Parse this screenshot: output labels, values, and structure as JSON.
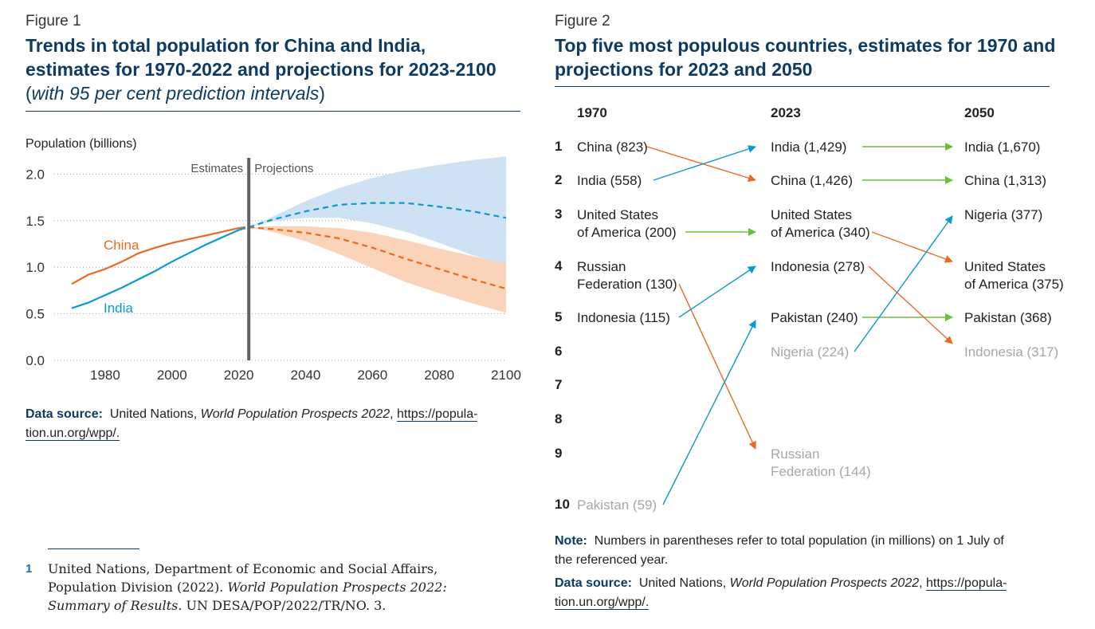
{
  "figure1": {
    "label": "Figure 1",
    "title_line1": "Trends in total population for China and India,",
    "title_line2": "estimates for 1970-2022 and projections for 2023-2100",
    "subtitle_open": "(",
    "subtitle_text": "with 95 per cent prediction intervals",
    "subtitle_close": ")",
    "source_label": "Data source:",
    "source_text": "United Nations,",
    "source_title": "World Population Prospects 2022",
    "source_link_line1": "https://popula-",
    "source_link_line2": "tion.un.org/wpp/."
  },
  "chart_data": {
    "type": "line",
    "title": "Trends in total population for China and India, estimates for 1970-2022 and projections for 2023-2100",
    "ylabel": "Population (billions)",
    "xlabel": "",
    "xlim": [
      1965,
      2100
    ],
    "ylim": [
      0,
      2.2
    ],
    "x_ticks": [
      1980,
      2000,
      2020,
      2040,
      2060,
      2080,
      2100
    ],
    "y_ticks": [
      0.0,
      0.5,
      1.0,
      1.5,
      2.0
    ],
    "y_tick_labels": [
      "0.0",
      "0.5",
      "1.0",
      "1.5",
      "2.0"
    ],
    "grid": "horizontal-dotted",
    "divider_year": 2023,
    "divider_labels": {
      "left": "Estimates",
      "right": "Projections"
    },
    "series": [
      {
        "name": "China",
        "color": "#ea6a22",
        "band_color": "#fad3b8",
        "estimates": {
          "x": [
            1970,
            1975,
            1980,
            1985,
            1990,
            1995,
            2000,
            2005,
            2010,
            2015,
            2020,
            2022
          ],
          "y": [
            0.82,
            0.92,
            0.98,
            1.06,
            1.15,
            1.21,
            1.26,
            1.3,
            1.34,
            1.38,
            1.42,
            1.43
          ]
        },
        "projection": {
          "x": [
            2023,
            2030,
            2040,
            2050,
            2060,
            2070,
            2080,
            2090,
            2100
          ],
          "y": [
            1.43,
            1.41,
            1.37,
            1.31,
            1.21,
            1.09,
            0.98,
            0.87,
            0.77
          ]
        },
        "lower": {
          "x": [
            2023,
            2030,
            2040,
            2050,
            2060,
            2070,
            2080,
            2090,
            2100
          ],
          "y": [
            1.43,
            1.38,
            1.28,
            1.14,
            0.99,
            0.84,
            0.72,
            0.61,
            0.51
          ]
        },
        "upper": {
          "x": [
            2023,
            2030,
            2040,
            2050,
            2060,
            2070,
            2080,
            2090,
            2100
          ],
          "y": [
            1.43,
            1.44,
            1.44,
            1.42,
            1.37,
            1.29,
            1.2,
            1.12,
            1.04
          ]
        }
      },
      {
        "name": "India",
        "color": "#0a99d1",
        "band_color": "#cfe2f4",
        "estimates": {
          "x": [
            1970,
            1975,
            1980,
            1985,
            1990,
            1995,
            2000,
            2005,
            2010,
            2015,
            2020,
            2022
          ],
          "y": [
            0.56,
            0.62,
            0.7,
            0.78,
            0.87,
            0.96,
            1.06,
            1.15,
            1.24,
            1.32,
            1.4,
            1.42
          ]
        },
        "projection": {
          "x": [
            2023,
            2030,
            2040,
            2050,
            2060,
            2070,
            2080,
            2090,
            2100
          ],
          "y": [
            1.43,
            1.51,
            1.6,
            1.67,
            1.69,
            1.69,
            1.65,
            1.6,
            1.53
          ]
        },
        "lower": {
          "x": [
            2023,
            2030,
            2040,
            2050,
            2060,
            2070,
            2080,
            2090,
            2100
          ],
          "y": [
            1.43,
            1.49,
            1.53,
            1.53,
            1.47,
            1.38,
            1.26,
            1.13,
            1.02
          ]
        },
        "upper": {
          "x": [
            2023,
            2030,
            2040,
            2050,
            2060,
            2070,
            2080,
            2090,
            2100
          ],
          "y": [
            1.43,
            1.54,
            1.71,
            1.85,
            1.96,
            2.04,
            2.1,
            2.15,
            2.19
          ]
        }
      }
    ]
  },
  "figure2": {
    "label": "Figure 2",
    "title_line1": "Top five most populous countries, estimates for 1970 and",
    "title_line2": "projections for 2023 and 2050",
    "columns": [
      "1970",
      "2023",
      "2050"
    ],
    "ranks": [
      "1",
      "2",
      "3",
      "4",
      "5",
      "6",
      "7",
      "8",
      "9",
      "10"
    ],
    "col1970": [
      {
        "rank": 1,
        "lines": [
          "China (823)"
        ],
        "top5": true
      },
      {
        "rank": 2,
        "lines": [
          "India (558)"
        ],
        "top5": true
      },
      {
        "rank": 3,
        "lines": [
          "United States",
          "of America (200)"
        ],
        "top5": true
      },
      {
        "rank": 4,
        "lines": [
          "Russian",
          "Federation (130)"
        ],
        "top5": true
      },
      {
        "rank": 5,
        "lines": [
          "Indonesia (115)"
        ],
        "top5": true
      },
      {
        "rank": 10,
        "lines": [
          "Pakistan (59)"
        ],
        "top5": false
      }
    ],
    "col2023": [
      {
        "rank": 1,
        "lines": [
          "India (1,429)"
        ],
        "top5": true
      },
      {
        "rank": 2,
        "lines": [
          "China (1,426)"
        ],
        "top5": true
      },
      {
        "rank": 3,
        "lines": [
          "United States",
          "of America (340)"
        ],
        "top5": true
      },
      {
        "rank": 4,
        "lines": [
          "Indonesia (278)"
        ],
        "top5": true
      },
      {
        "rank": 5,
        "lines": [
          "Pakistan (240)"
        ],
        "top5": true
      },
      {
        "rank": 6,
        "lines": [
          "Nigeria (224)"
        ],
        "top5": false
      },
      {
        "rank": 9,
        "lines": [
          "Russian",
          "Federation (144)"
        ],
        "top5": false
      }
    ],
    "col2050": [
      {
        "rank": 1,
        "lines": [
          "India (1,670)"
        ],
        "top5": true
      },
      {
        "rank": 2,
        "lines": [
          "China (1,313)"
        ],
        "top5": true
      },
      {
        "rank": 3,
        "lines": [
          "Nigeria (377)"
        ],
        "top5": true
      },
      {
        "rank": 4,
        "lines": [
          "United States",
          "of America (375)"
        ],
        "top5": true
      },
      {
        "rank": 5,
        "lines": [
          "Pakistan (368)"
        ],
        "top5": true
      },
      {
        "rank": 6,
        "lines": [
          "Indonesia (317)"
        ],
        "top5": false
      }
    ],
    "arrows": [
      {
        "from": "1970",
        "from_rank": 1,
        "to_rank": 2,
        "change": "down"
      },
      {
        "from": "1970",
        "from_rank": 2,
        "to_rank": 1,
        "change": "up"
      },
      {
        "from": "1970",
        "from_rank": 3,
        "to_rank": 3,
        "change": "same"
      },
      {
        "from": "1970",
        "from_rank": 4,
        "to_rank": 9,
        "change": "down"
      },
      {
        "from": "1970",
        "from_rank": 5,
        "to_rank": 4,
        "change": "up"
      },
      {
        "from": "1970",
        "from_rank": 10,
        "to_rank": 5,
        "change": "up"
      },
      {
        "from": "2023",
        "from_rank": 1,
        "to_rank": 1,
        "change": "same"
      },
      {
        "from": "2023",
        "from_rank": 2,
        "to_rank": 2,
        "change": "same"
      },
      {
        "from": "2023",
        "from_rank": 3,
        "to_rank": 4,
        "change": "down"
      },
      {
        "from": "2023",
        "from_rank": 4,
        "to_rank": 6,
        "change": "down"
      },
      {
        "from": "2023",
        "from_rank": 5,
        "to_rank": 5,
        "change": "same"
      },
      {
        "from": "2023",
        "from_rank": 6,
        "to_rank": 3,
        "change": "up"
      }
    ],
    "colors": {
      "up": "#0a99d1",
      "down": "#ea6a22",
      "same": "#6cbf3c"
    },
    "note_label": "Note:",
    "note_line1": "Numbers in parentheses refer to total population (in millions) on 1 July of",
    "note_line2": "the referenced year.",
    "source_label": "Data source:",
    "source_text": "United Nations,",
    "source_title": "World Population Prospects 2022",
    "source_link_line1": "https://popula-",
    "source_link_line2": "tion.un.org/wpp/."
  },
  "footnote": {
    "number": "1",
    "line1": "United Nations, Department of Economic and Social Affairs,",
    "line2_plain": "Population Division (2022).",
    "line2_italic": "World Population Prospects 2022:",
    "line3_italic": "Summary of Results",
    "line3_plain": ". UN DESA/POP/2022/TR/NO. 3."
  }
}
